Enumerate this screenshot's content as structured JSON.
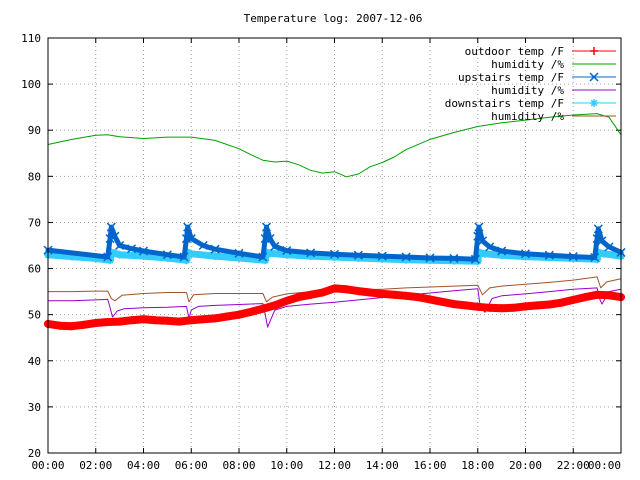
{
  "chart_data": {
    "type": "line",
    "title": "Temperature log: 2007-12-06",
    "xlabel": "",
    "ylabel": "",
    "x_range_hours": [
      0,
      24
    ],
    "ylim": [
      20,
      110
    ],
    "y_ticks": [
      20,
      30,
      40,
      50,
      60,
      70,
      80,
      90,
      100,
      110
    ],
    "x_tick_labels": [
      "00:00",
      "02:00",
      "04:00",
      "06:00",
      "08:00",
      "10:00",
      "12:00",
      "14:00",
      "16:00",
      "18:00",
      "20:00",
      "22:00",
      "00:00"
    ],
    "grid": true,
    "legend_position": "top-right",
    "series": [
      {
        "name": "outdoor temp /F",
        "color": "#ff0000",
        "marker": "plus",
        "x": [
          0,
          0.5,
          1,
          1.5,
          2,
          2.5,
          3,
          3.5,
          4,
          4.5,
          5,
          5.5,
          6,
          6.5,
          7,
          7.5,
          8,
          8.5,
          9,
          9.5,
          10,
          10.5,
          11,
          11.5,
          12,
          12.5,
          13,
          13.5,
          14,
          14.5,
          15,
          15.5,
          16,
          16.5,
          17,
          17.5,
          18,
          18.5,
          19,
          19.5,
          20,
          20.5,
          21,
          21.5,
          22,
          22.5,
          23,
          23.5,
          24
        ],
        "y": [
          48,
          47.6,
          47.5,
          47.8,
          48.2,
          48.4,
          48.5,
          48.8,
          49,
          48.8,
          48.7,
          48.5,
          48.8,
          49,
          49.2,
          49.6,
          50,
          50.6,
          51.3,
          52,
          53,
          53.8,
          54.3,
          54.8,
          55.7,
          55.5,
          55.1,
          54.8,
          54.5,
          54.3,
          54.1,
          53.8,
          53.3,
          52.8,
          52.3,
          52,
          51.7,
          51.5,
          51.4,
          51.5,
          51.8,
          52,
          52.2,
          52.6,
          53.2,
          53.8,
          54.3,
          54.2,
          53.8
        ]
      },
      {
        "name": "humidity /%",
        "color": "#00a000",
        "marker": "none",
        "x": [
          0,
          1,
          2,
          2.5,
          3,
          4,
          5,
          6,
          7,
          8,
          8.5,
          9,
          9.5,
          10,
          10.5,
          11,
          11.5,
          12,
          12.5,
          13,
          13.5,
          14,
          14.5,
          15,
          16,
          17,
          18,
          19,
          20,
          21,
          22,
          23,
          23.5,
          24
        ],
        "y": [
          86.9,
          88,
          88.9,
          89,
          88.6,
          88.2,
          88.5,
          88.5,
          87.8,
          86,
          84.7,
          83.5,
          83.1,
          83.3,
          82.5,
          81.3,
          80.7,
          81,
          79.9,
          80.5,
          82.1,
          83,
          84.2,
          85.8,
          88,
          89.5,
          90.8,
          91.6,
          92.2,
          92.8,
          93.3,
          93.6,
          92.8,
          89
        ]
      },
      {
        "name": "upstairs temp /F",
        "color": "#0066cc",
        "marker": "cross",
        "x": [
          0,
          2.5,
          2.6,
          2.65,
          2.8,
          3,
          3.5,
          4,
          5,
          5.7,
          5.8,
          5.85,
          6,
          6.5,
          7,
          8,
          9.0,
          9.1,
          9.15,
          9.3,
          9.5,
          10,
          11,
          12,
          13,
          14,
          15,
          16,
          17,
          17.9,
          18.0,
          18.05,
          18.2,
          18.5,
          19,
          20,
          21,
          22,
          22.9,
          23.0,
          23.05,
          23.2,
          23.5,
          24
        ],
        "y": [
          64,
          62.5,
          66.5,
          69,
          67,
          65,
          64.3,
          63.8,
          63,
          62.5,
          66.5,
          69,
          66.5,
          65,
          64.2,
          63.3,
          62.5,
          66.5,
          69,
          66.5,
          64.8,
          63.9,
          63.4,
          63.1,
          62.9,
          62.7,
          62.5,
          62.3,
          62.2,
          62.0,
          67,
          69,
          66,
          64.7,
          63.8,
          63.2,
          62.9,
          62.6,
          62.4,
          66.5,
          68.6,
          66,
          64.7,
          63.5
        ]
      },
      {
        "name": "humidity /%",
        "color": "#9900cc",
        "marker": "none",
        "x": [
          0,
          1,
          2,
          2.5,
          2.6,
          2.7,
          2.9,
          3.2,
          4,
          5,
          5.8,
          5.9,
          6.0,
          6.3,
          7,
          8,
          9.0,
          9.1,
          9.2,
          9.5,
          10,
          11,
          12,
          13,
          14,
          15,
          16,
          17,
          18.0,
          18.1,
          18.3,
          18.6,
          19,
          20,
          21,
          22,
          23.0,
          23.1,
          23.2,
          23.5,
          24
        ],
        "y": [
          53,
          53,
          53.2,
          53.3,
          51.5,
          49.5,
          50.8,
          51.3,
          51.5,
          51.6,
          51.8,
          49.2,
          51,
          51.8,
          52,
          52.2,
          52.4,
          50,
          47.3,
          51,
          51.8,
          52.3,
          52.7,
          53.2,
          53.7,
          54.2,
          54.7,
          55.2,
          55.6,
          52,
          50.5,
          53.5,
          54.1,
          54.5,
          55,
          55.5,
          55.8,
          53.5,
          52.3,
          55,
          55.5
        ]
      },
      {
        "name": "downstairs temp /F",
        "color": "#33ccff",
        "marker": "star",
        "x": [
          0,
          1,
          2,
          2.6,
          2.65,
          2.8,
          3,
          4,
          5,
          5.8,
          5.85,
          6,
          7,
          8,
          9.1,
          9.15,
          9.3,
          10,
          11,
          12,
          13,
          14,
          15,
          16,
          17,
          18.0,
          18.05,
          18.3,
          19,
          20,
          21,
          22,
          23.0,
          23.05,
          23.3,
          24
        ],
        "y": [
          63,
          62.6,
          62.2,
          61.8,
          63.5,
          63.3,
          63,
          62.7,
          62.3,
          61.8,
          63.5,
          63.2,
          62.7,
          62.3,
          61.8,
          63.5,
          63.3,
          63,
          62.7,
          62.5,
          62.3,
          62.1,
          61.9,
          61.8,
          61.7,
          61.6,
          63.5,
          63.2,
          62.9,
          62.6,
          62.4,
          62.2,
          62,
          63.5,
          63.2,
          62.7
        ]
      },
      {
        "name": "humidity /%",
        "color": "#a0522d",
        "marker": "none",
        "x": [
          0,
          1,
          2,
          2.5,
          2.65,
          2.8,
          3.1,
          4,
          5,
          5.8,
          5.9,
          6.1,
          7,
          8,
          9.0,
          9.15,
          9.4,
          10,
          11,
          12,
          13,
          14,
          15,
          16,
          17,
          18.0,
          18.2,
          18.5,
          19,
          20,
          21,
          22,
          23.0,
          23.15,
          23.4,
          24
        ],
        "y": [
          55,
          55,
          55.1,
          55.1,
          53.5,
          53,
          54.2,
          54.6,
          54.8,
          54.8,
          52.8,
          54.3,
          54.6,
          54.6,
          54.6,
          52.8,
          53.8,
          54.5,
          55,
          55.3,
          55.4,
          55.5,
          55.8,
          56,
          56.2,
          56.4,
          54.3,
          55.8,
          56.2,
          56.6,
          57,
          57.5,
          58.2,
          55.8,
          57.1,
          57.8
        ]
      }
    ]
  }
}
